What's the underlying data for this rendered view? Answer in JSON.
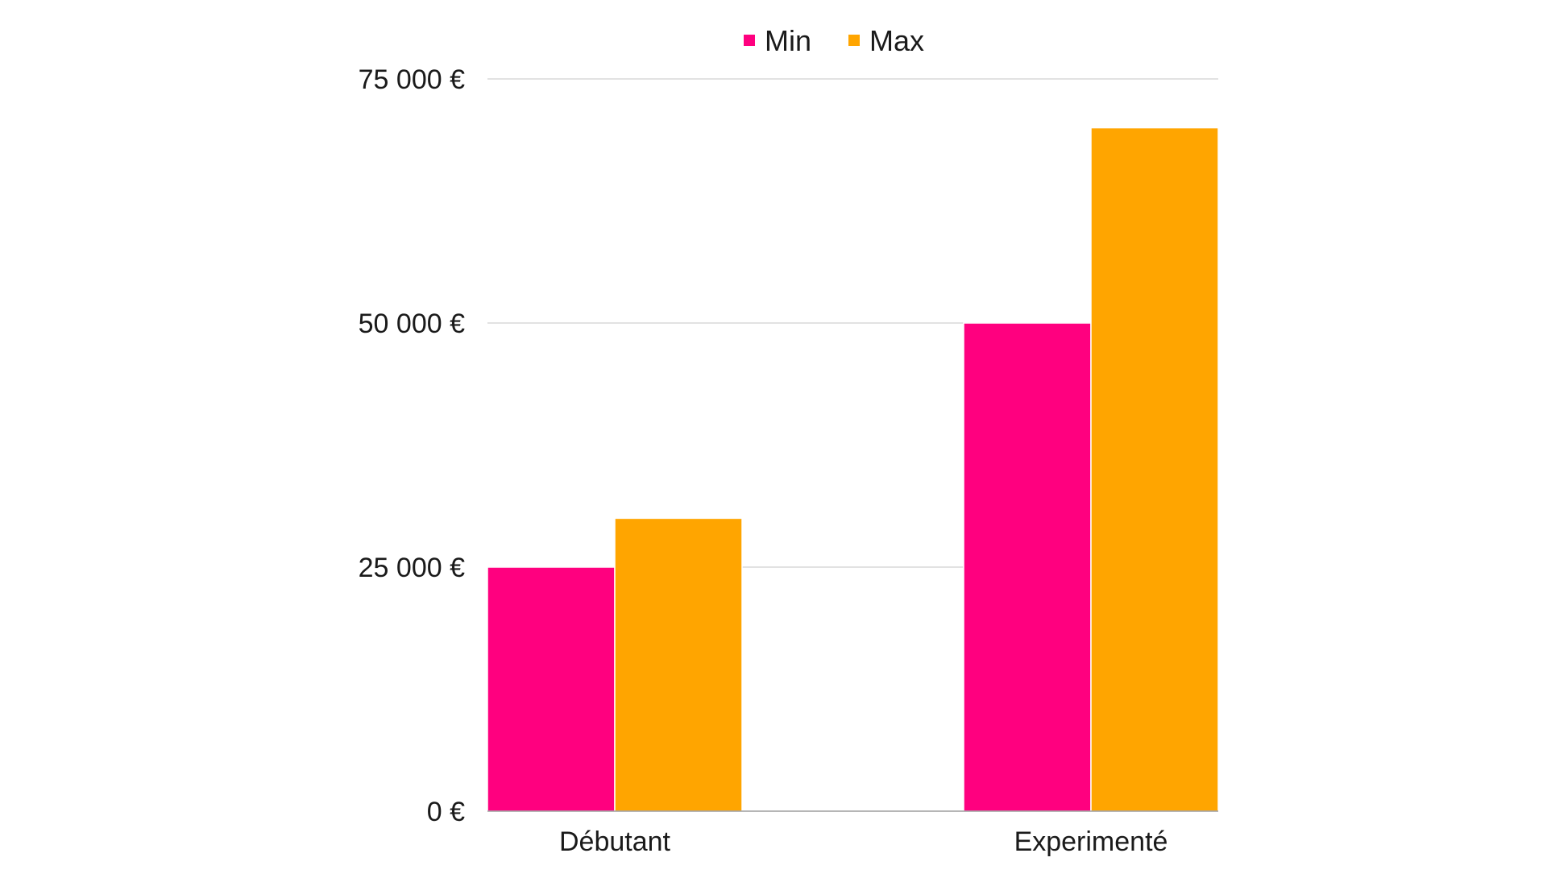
{
  "chart_data": {
    "type": "bar",
    "title": "",
    "xlabel": "",
    "ylabel": "",
    "categories": [
      "Débutant",
      "Experimenté"
    ],
    "series": [
      {
        "name": "Min",
        "color": "#FF007F",
        "values": [
          25000,
          50000
        ]
      },
      {
        "name": "Max",
        "color": "#FFA500",
        "values": [
          30000,
          70000
        ]
      }
    ],
    "ylim": [
      0,
      75000
    ],
    "yticks": [
      0,
      25000,
      50000,
      75000
    ],
    "ytick_labels": [
      "0 €",
      "25 000 €",
      "50 000 €",
      "75 000 €"
    ],
    "grid": true,
    "legend_position": "top-center"
  }
}
